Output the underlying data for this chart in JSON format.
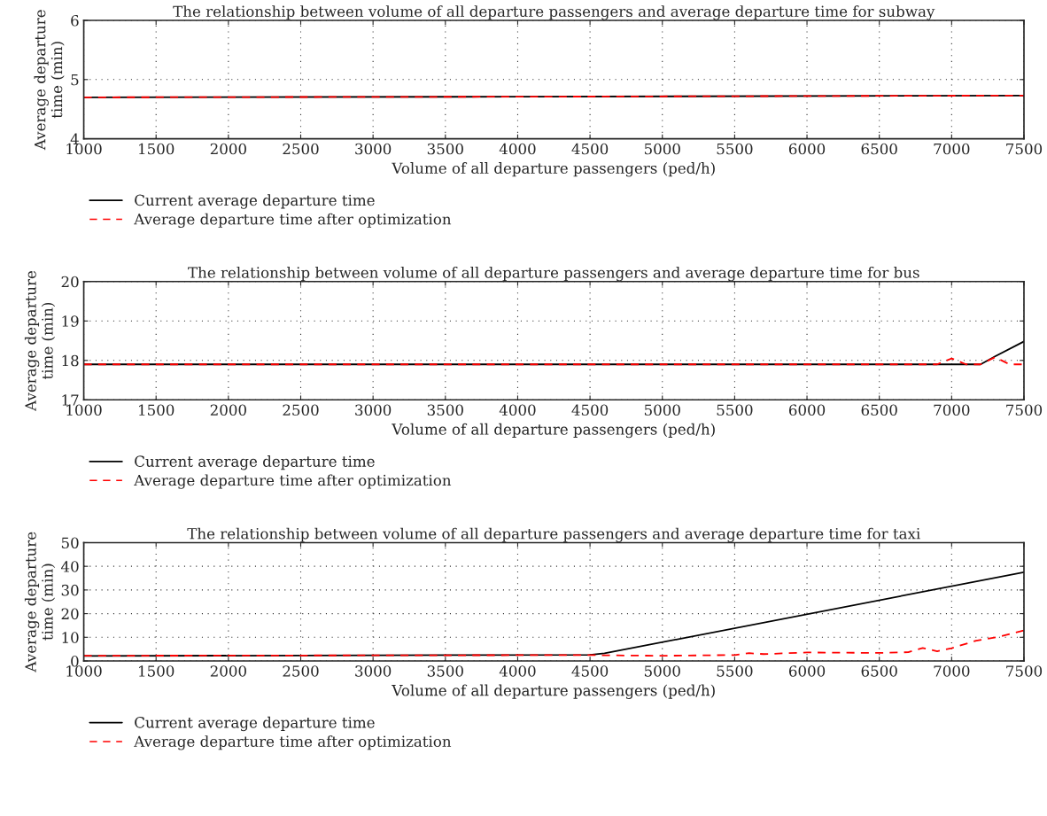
{
  "chart_data": [
    {
      "type": "line",
      "title": "The relationship between volume of all departure passengers and average departure time for subway",
      "xlabel": "Volume of all departure passengers (ped/h)",
      "ylabel": "Average departure\ntime (min)",
      "xlim": [
        1000,
        7500
      ],
      "xticks": [
        1000,
        1500,
        2000,
        2500,
        3000,
        3500,
        4000,
        4500,
        5000,
        5500,
        6000,
        6500,
        7000,
        7500
      ],
      "ylim": [
        4,
        6
      ],
      "yticks": [
        4,
        5,
        6
      ],
      "grid": true,
      "legend": "bottom left",
      "series": [
        {
          "name": "Current average departure time",
          "color": "#000000",
          "line_style": "solid",
          "x": [
            1000,
            4000,
            7500
          ],
          "values": [
            4.7,
            4.71,
            4.73
          ]
        },
        {
          "name": "Average departure time after optimization",
          "color": "#ff0000",
          "line_style": "dashed",
          "x": [
            1000,
            4000,
            7500
          ],
          "values": [
            4.7,
            4.71,
            4.73
          ]
        }
      ]
    },
    {
      "type": "line",
      "title": "The relationship between volume of all departure passengers and average departure time for bus",
      "xlabel": "Volume of all departure passengers (ped/h)",
      "ylabel": "Average departure\ntime (min)",
      "xlim": [
        1000,
        7500
      ],
      "xticks": [
        1000,
        1500,
        2000,
        2500,
        3000,
        3500,
        4000,
        4500,
        5000,
        5500,
        6000,
        6500,
        7000,
        7500
      ],
      "ylim": [
        17,
        20
      ],
      "yticks": [
        17,
        18,
        19,
        20
      ],
      "grid": true,
      "legend": "bottom left",
      "series": [
        {
          "name": "Current average departure time",
          "color": "#000000",
          "line_style": "solid",
          "x": [
            1000,
            7200,
            7300,
            7500
          ],
          "values": [
            17.9,
            17.9,
            18.1,
            18.48
          ]
        },
        {
          "name": "Average departure time after optimization",
          "color": "#ff0000",
          "line_style": "dashed",
          "x": [
            1000,
            6900,
            7000,
            7100,
            7200,
            7300,
            7400,
            7500
          ],
          "values": [
            17.9,
            17.9,
            18.05,
            17.9,
            17.9,
            18.08,
            17.9,
            17.9
          ]
        }
      ]
    },
    {
      "type": "line",
      "title": "The relationship between volume of all departure passengers and average departure time for taxi",
      "xlabel": "Volume of all departure passengers (ped/h)",
      "ylabel": "Average departure\ntime (min)",
      "xlim": [
        1000,
        7500
      ],
      "xticks": [
        1000,
        1500,
        2000,
        2500,
        3000,
        3500,
        4000,
        4500,
        5000,
        5500,
        6000,
        6500,
        7000,
        7500
      ],
      "ylim": [
        0,
        50
      ],
      "yticks": [
        0,
        10,
        20,
        30,
        40,
        50
      ],
      "grid": true,
      "legend": "bottom left",
      "series": [
        {
          "name": "Current average departure time",
          "color": "#000000",
          "line_style": "solid",
          "x": [
            1000,
            4500,
            4600,
            7500
          ],
          "values": [
            2.1,
            2.6,
            3.2,
            37.5
          ]
        },
        {
          "name": "Average departure time after optimization",
          "color": "#ff0000",
          "line_style": "dashed",
          "x": [
            1000,
            4500,
            4600,
            5000,
            5500,
            5600,
            5700,
            6000,
            6500,
            6700,
            6800,
            6900,
            7000,
            7170,
            7310,
            7500
          ],
          "values": [
            2.2,
            2.5,
            2.4,
            2.2,
            2.5,
            3.3,
            2.9,
            3.6,
            3.4,
            3.7,
            5.5,
            4.1,
            5.4,
            8.6,
            10.0,
            12.9
          ]
        }
      ]
    }
  ]
}
